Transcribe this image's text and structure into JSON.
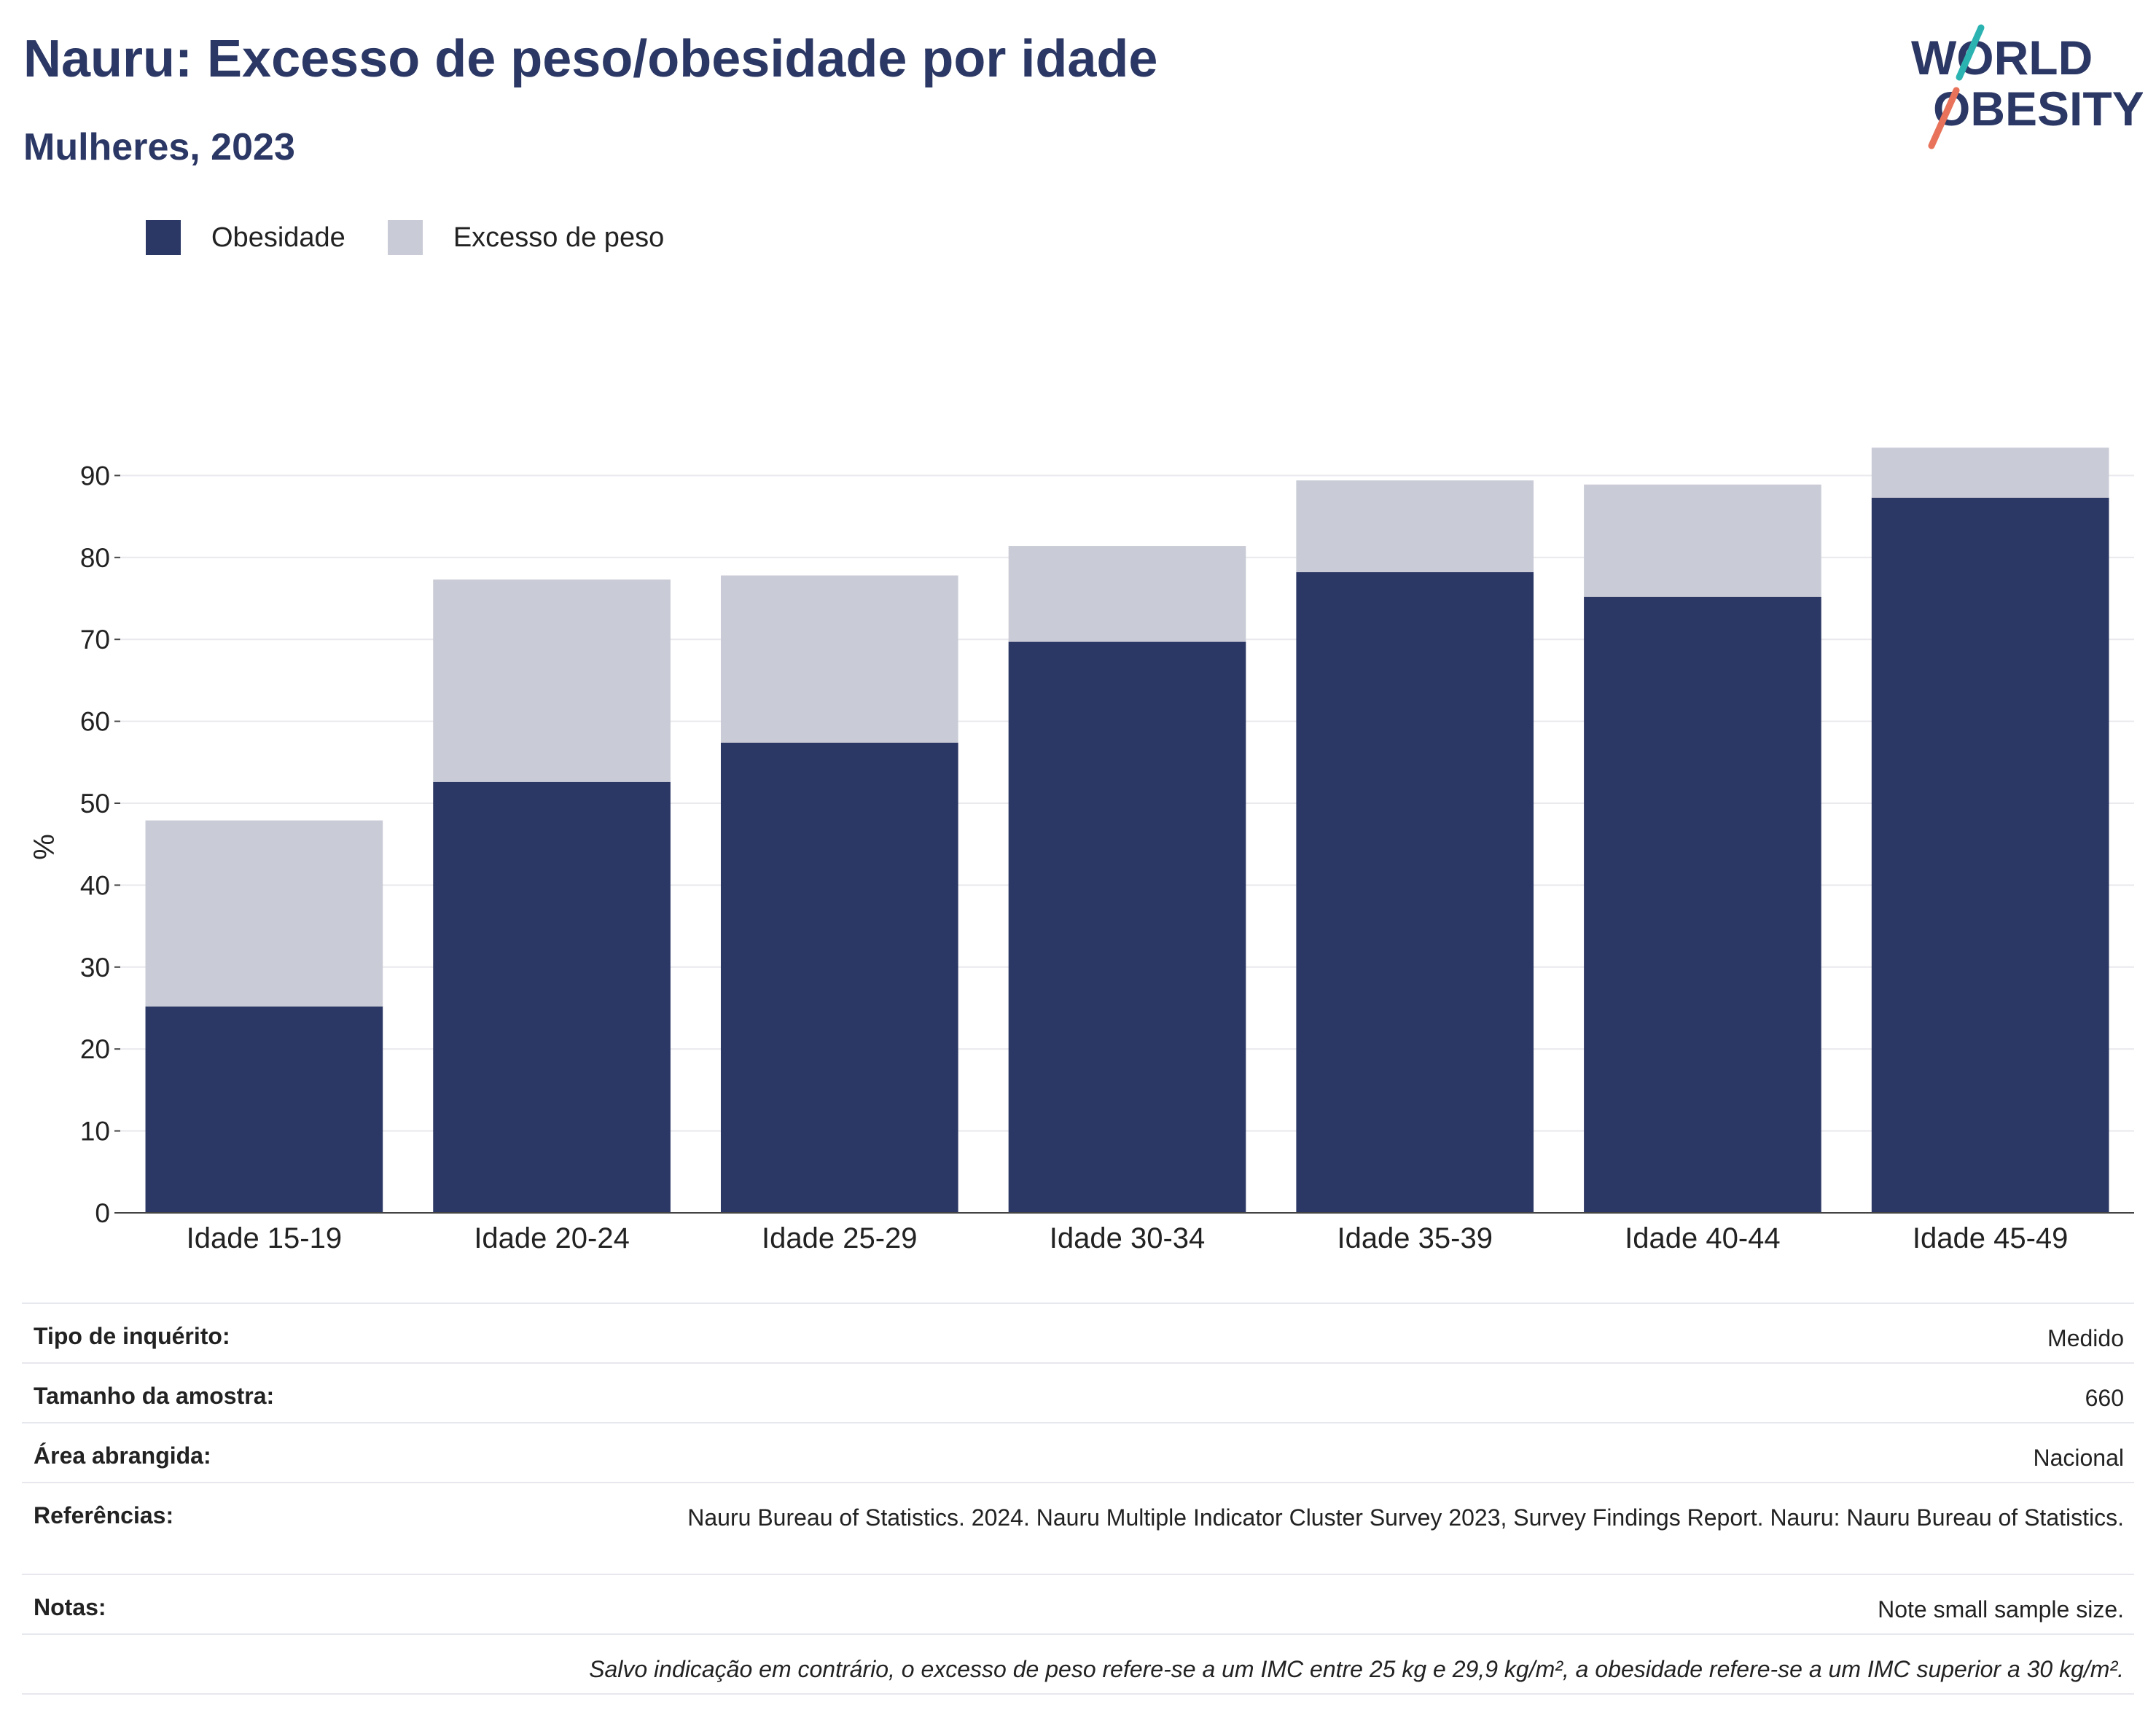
{
  "header": {
    "title": "Nauru: Excesso de peso/obesidade por idade",
    "subtitle": "Mulheres, 2023"
  },
  "logo": {
    "line1": "WORLD",
    "line2": "OBESITY",
    "accent_teal": "#2bb3b1",
    "accent_coral": "#e8735a"
  },
  "legend": {
    "items": [
      {
        "label": "Obesidade",
        "color": "#2b3764"
      },
      {
        "label": "Excesso de peso",
        "color": "#c9cbd6"
      }
    ]
  },
  "chart_data": {
    "type": "bar",
    "stacked": true,
    "categories": [
      "Idade 15-19",
      "Idade 20-24",
      "Idade 25-29",
      "Idade 30-34",
      "Idade 35-39",
      "Idade 40-44",
      "Idade 45-49"
    ],
    "series": [
      {
        "name": "Obesidade",
        "color": "#2b3764",
        "values": [
          25.2,
          52.6,
          57.4,
          69.7,
          78.2,
          75.2,
          87.3
        ]
      },
      {
        "name": "Excesso de peso",
        "color": "#c9cbd6",
        "values": [
          22.7,
          24.7,
          20.4,
          11.7,
          11.2,
          13.7,
          6.1
        ]
      }
    ],
    "ylabel": "%",
    "ylim": [
      0,
      100
    ],
    "yticks": [
      0,
      10,
      20,
      30,
      40,
      50,
      60,
      70,
      80,
      90
    ],
    "grid": true,
    "legend_position": "top-left"
  },
  "info": {
    "rows": [
      {
        "label": "Tipo de inquérito:",
        "value": "Medido"
      },
      {
        "label": "Tamanho da amostra:",
        "value": "660"
      },
      {
        "label": "Área abrangida:",
        "value": "Nacional"
      },
      {
        "label": "Referências:",
        "value": "Nauru Bureau of Statistics. 2024. Nauru Multiple Indicator Cluster Survey 2023, Survey Findings Report. Nauru: Nauru Bureau of Statistics."
      },
      {
        "label": "Notas:",
        "value": "Note small sample size."
      }
    ],
    "footnote": "Salvo indicação em contrário, o excesso de peso refere-se a um IMC entre 25 kg e 29,9 kg/m², a obesidade refere-se a um IMC superior a 30 kg/m²."
  }
}
